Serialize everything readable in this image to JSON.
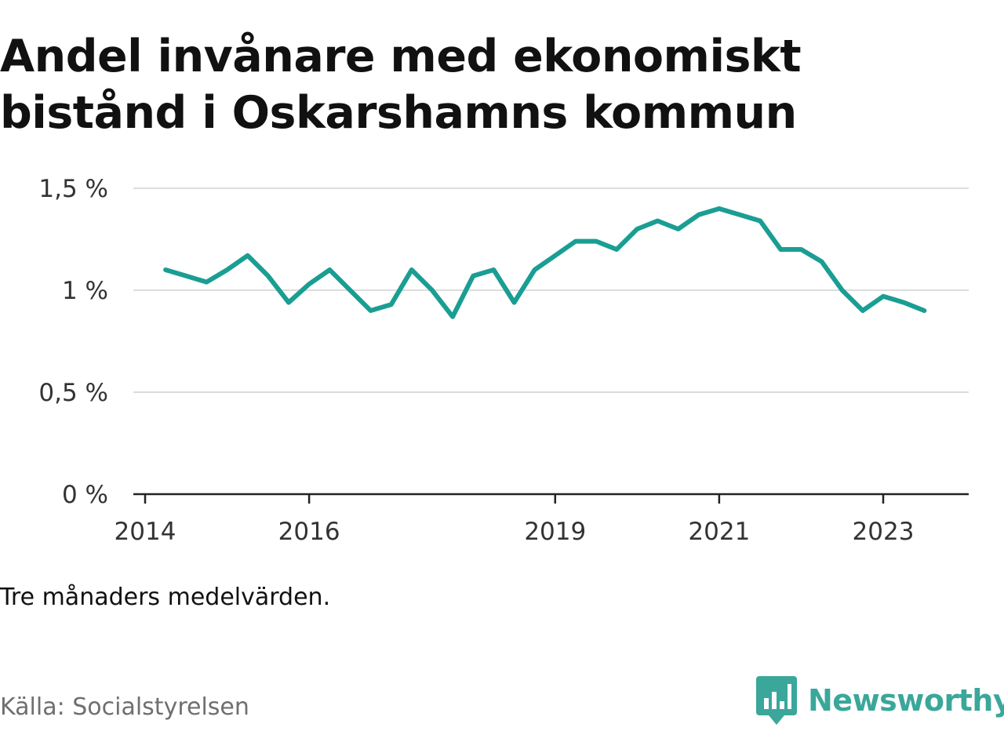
{
  "title_lines": [
    "Andel invånare med ekonomiskt",
    "bistånd i Oskarshamns kommun"
  ],
  "note": "Tre månaders medelvärden.",
  "source": "Källa: Socialstyrelsen",
  "brand": {
    "name": "Newsworthy",
    "icon": "newsworthy-logo-icon",
    "color": "#3aa79a"
  },
  "chart_data": {
    "type": "line",
    "title": "Andel invånare med ekonomiskt bistånd i Oskarshamns kommun",
    "xlabel": "",
    "ylabel": "",
    "x_ticks": [
      "2014",
      "2016",
      "2019",
      "2021",
      "2023"
    ],
    "y_ticks": [
      "0 %",
      "0,5 %",
      "1 %",
      "1,5 %"
    ],
    "y_tick_values": [
      0,
      0.5,
      1,
      1.5
    ],
    "ylim": [
      0,
      1.5
    ],
    "xlim": [
      "2014-01",
      "2024-01"
    ],
    "grid": true,
    "legend": "none",
    "line_color": "#1a9e93",
    "series": [
      {
        "x": [
          "2014-04",
          "2014-07",
          "2014-10",
          "2015-01",
          "2015-04",
          "2015-07",
          "2015-10",
          "2016-01",
          "2016-04",
          "2016-07",
          "2016-10",
          "2017-01",
          "2017-04",
          "2017-07",
          "2017-10",
          "2018-01",
          "2018-04",
          "2018-07",
          "2018-10",
          "2019-01",
          "2019-04",
          "2019-07",
          "2019-10",
          "2020-01",
          "2020-04",
          "2020-07",
          "2020-10",
          "2021-01",
          "2021-04",
          "2021-07",
          "2021-10",
          "2022-01",
          "2022-04",
          "2022-07",
          "2022-10",
          "2023-01",
          "2023-04",
          "2023-07"
        ],
        "values": [
          1.1,
          1.07,
          1.04,
          1.1,
          1.17,
          1.07,
          0.94,
          1.03,
          1.1,
          1.0,
          0.9,
          0.93,
          1.1,
          1.0,
          0.87,
          1.07,
          1.1,
          0.94,
          1.1,
          1.17,
          1.24,
          1.24,
          1.2,
          1.3,
          1.34,
          1.3,
          1.37,
          1.4,
          1.37,
          1.34,
          1.2,
          1.2,
          1.14,
          1.0,
          0.9,
          0.97,
          0.94,
          0.9
        ]
      }
    ]
  }
}
